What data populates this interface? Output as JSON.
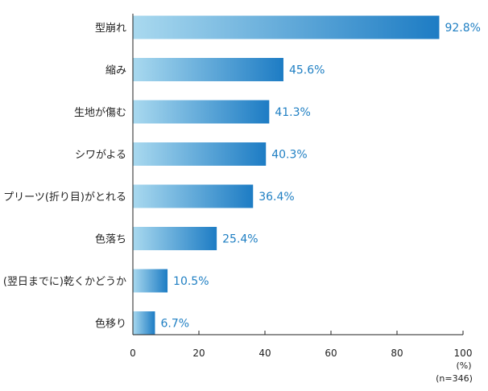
{
  "chart_data": {
    "type": "bar",
    "orientation": "horizontal",
    "categories": [
      "型崩れ",
      "縮み",
      "生地が傷む",
      "シワがよる",
      "プリーツ(折り目)がとれる",
      "色落ち",
      "(翌日までに)乾くかどうか",
      "色移り"
    ],
    "values": [
      92.8,
      45.6,
      41.3,
      40.3,
      36.4,
      25.4,
      10.5,
      6.7
    ],
    "value_labels": [
      "92.8%",
      "45.6%",
      "41.3%",
      "40.3%",
      "36.4%",
      "25.4%",
      "10.5%",
      "6.7%"
    ],
    "x_ticks": [
      "0",
      "20",
      "40",
      "60",
      "80",
      "100"
    ],
    "xlim": [
      0,
      100
    ],
    "xlabel": "(%)",
    "sample_note": "(n=346)",
    "grid": false,
    "bar_gradient": [
      "#a9d9ef",
      "#1d7cc4"
    ],
    "value_label_color": "#1f7fc3"
  }
}
